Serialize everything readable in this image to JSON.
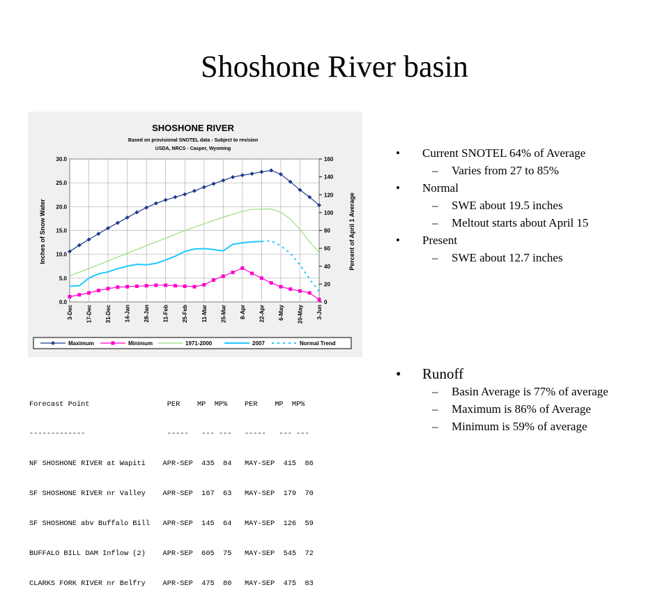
{
  "slide_title": "Shoshone River basin",
  "bullets": [
    {
      "level": 1,
      "text": "Current SNOTEL  64% of Average"
    },
    {
      "level": 2,
      "text": "Varies from 27 to 85%"
    },
    {
      "level": 1,
      "text": "Normal"
    },
    {
      "level": 2,
      "text": "SWE about 19.5 inches"
    },
    {
      "level": 2,
      "text": "Meltout starts about April 15"
    },
    {
      "level": 1,
      "text": "Present"
    },
    {
      "level": 2,
      "text": "SWE about 12.7 inches"
    }
  ],
  "runoff": {
    "heading": "Runoff",
    "items": [
      "Basin Average is 77% of average",
      "Maximum is 86% of Average",
      "Minimum is  59% of average"
    ]
  },
  "forecast_table": {
    "header": "Forecast Point                  PER    MP  MP%    PER    MP  MP%",
    "divider": "-------------                   -----   --- ---   -----   --- ---",
    "rows": [
      "NF SHOSHONE RIVER at Wapiti    APR-SEP  435  84   MAY-SEP  415  86",
      "SF SHOSHONE RIVER nr Valley    APR-SEP  167  63   MAY-SEP  179  70",
      "SF SHOSHONE abv Buffalo Bill   APR-SEP  145  64   MAY-SEP  126  59",
      "BUFFALO BILL DAM Inflow (2)    APR-SEP  605  75   MAY-SEP  545  72",
      "CLARKS FORK RIVER nr Belfry    APR-SEP  475  80   MAY-SEP  475  83"
    ]
  },
  "chart_data": {
    "type": "line",
    "title": "SHOSHONE RIVER",
    "subtitle": "Based on provisional SNOTEL data - Subject to revision",
    "subtitle2": "USDA, NRCS - Casper, Wyoming",
    "ylabel": "Inches of Snow Water",
    "y2label": "Percent of April 1 Average",
    "ylim": [
      0,
      30
    ],
    "yticks": [
      "0.0",
      "5.0",
      "10.0",
      "15.0",
      "20.0",
      "25.0",
      "30.0"
    ],
    "y2lim": [
      0,
      160
    ],
    "y2ticks": [
      "0",
      "20",
      "40",
      "60",
      "80",
      "100",
      "120",
      "140",
      "160"
    ],
    "xtick_labels": [
      "3-Dec",
      "17-Dec",
      "31-Dec",
      "14-Jan",
      "28-Jan",
      "11-Feb",
      "25-Feb",
      "11-Mar",
      "25-Mar",
      "8-Apr",
      "22-Apr",
      "6-May",
      "20-May",
      "3-Jun"
    ],
    "grid": true,
    "legend_position": "bottom",
    "colors": {
      "maximum": "#1f3a8a",
      "minimum": "#ff00cc",
      "avg": "#99e07a",
      "y2007": "#1ec8ff",
      "trend": "#1ec8ff"
    },
    "series": [
      {
        "name": "Maximum",
        "x": [
          0,
          1,
          2,
          3,
          4,
          5,
          6,
          7,
          8,
          9,
          10,
          11,
          12,
          13,
          14,
          15,
          16,
          17,
          18,
          19,
          20,
          21,
          22,
          23,
          24,
          25,
          26
        ],
        "values": [
          10.6,
          11.9,
          13.1,
          14.3,
          15.5,
          16.6,
          17.7,
          18.8,
          19.8,
          20.7,
          21.4,
          22.0,
          22.6,
          23.3,
          24.1,
          24.8,
          25.5,
          26.2,
          26.6,
          26.9,
          27.3,
          27.6,
          26.8,
          25.2,
          23.5,
          22.0,
          20.3
        ]
      },
      {
        "name": "Minimum",
        "x": [
          0,
          1,
          2,
          3,
          4,
          5,
          6,
          7,
          8,
          9,
          10,
          11,
          12,
          13,
          14,
          15,
          16,
          17,
          18,
          19,
          20,
          21,
          22,
          23,
          24,
          25,
          26
        ],
        "values": [
          1.1,
          1.5,
          1.9,
          2.4,
          2.8,
          3.1,
          3.2,
          3.3,
          3.4,
          3.5,
          3.5,
          3.4,
          3.3,
          3.2,
          3.6,
          4.6,
          5.4,
          6.2,
          7.1,
          6.0,
          5.0,
          4.0,
          3.2,
          2.7,
          2.3,
          1.9,
          0.5
        ]
      },
      {
        "name": "1971-2000",
        "x": [
          0,
          2,
          4,
          6,
          8,
          10,
          12,
          14,
          16,
          18,
          19,
          20,
          21,
          22,
          23,
          24,
          25,
          26
        ],
        "values": [
          5.5,
          7.0,
          8.6,
          10.2,
          11.8,
          13.4,
          15.0,
          16.4,
          17.8,
          19.0,
          19.4,
          19.5,
          19.5,
          18.8,
          17.4,
          15.2,
          12.6,
          10.4
        ]
      },
      {
        "name": "2007",
        "x": [
          0,
          1,
          2,
          3,
          4,
          5,
          6,
          7,
          8,
          9,
          10,
          11,
          12,
          13,
          14,
          15,
          16,
          17,
          18,
          19,
          20
        ],
        "values": [
          3.3,
          3.4,
          5.0,
          5.9,
          6.3,
          7.0,
          7.5,
          7.9,
          7.8,
          8.1,
          8.8,
          9.6,
          10.6,
          11.1,
          11.2,
          11.0,
          10.7,
          12.1,
          12.4,
          12.6,
          12.7
        ]
      },
      {
        "name": "Normal Trend",
        "x": [
          20,
          21,
          22,
          23,
          24,
          25,
          26
        ],
        "values": [
          12.7,
          12.8,
          11.8,
          10.2,
          7.8,
          4.8,
          2.2
        ]
      }
    ]
  }
}
